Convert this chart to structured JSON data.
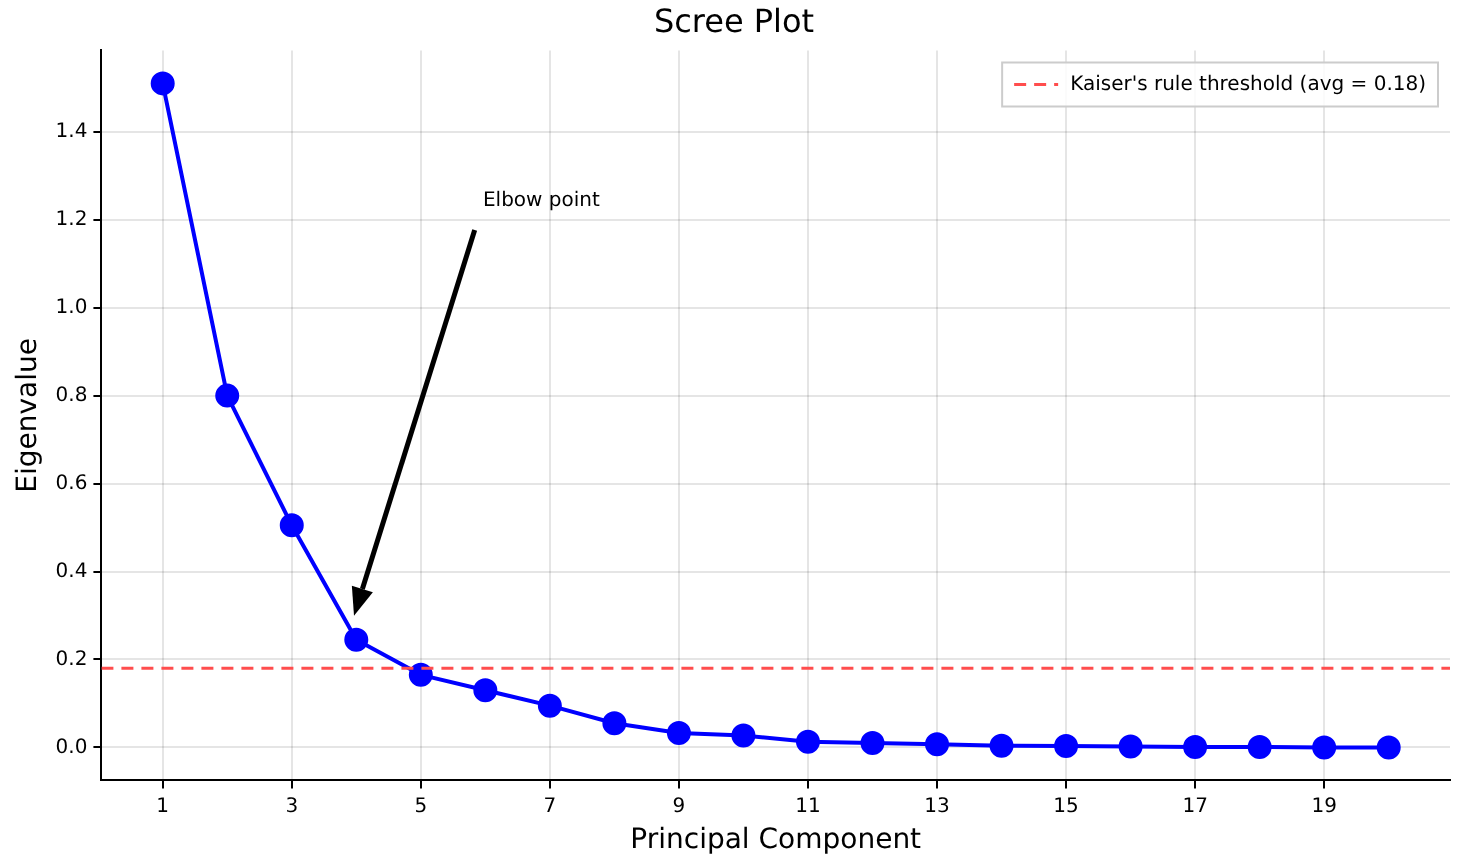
{
  "chart_data": {
    "type": "line",
    "title": "Scree Plot",
    "xlabel": "Principal Component",
    "ylabel": "Eigenvalue",
    "x": [
      1,
      2,
      3,
      4,
      5,
      6,
      7,
      8,
      9,
      10,
      11,
      12,
      13,
      14,
      15,
      16,
      17,
      18,
      19,
      20
    ],
    "series": [
      {
        "color": "#0000ff",
        "values": [
          1.51,
          0.8,
          0.505,
          0.245,
          0.165,
          0.13,
          0.095,
          0.055,
          0.033,
          0.027,
          0.013,
          0.01,
          0.007,
          0.004,
          0.003,
          0.002,
          0.001,
          0.001,
          0.0,
          0.0
        ]
      }
    ],
    "xlim": [
      0.05,
      20.95
    ],
    "xticks": [
      1,
      3,
      5,
      7,
      9,
      11,
      13,
      15,
      17,
      19
    ],
    "ylim": [
      -0.075,
      1.585
    ],
    "yticks": [
      {
        "value": 0,
        "label": "0.0"
      },
      0.2,
      0.4,
      0.6,
      0.8,
      {
        "value": 1,
        "label": "1.0"
      },
      1.2,
      1.4
    ],
    "ref_lines": [
      {
        "axis": "y",
        "value": 0.18,
        "label": "Kaiser's rule threshold (avg = 0.18)",
        "color": "#ff4d4d",
        "line_style": "dashed"
      }
    ],
    "annotations": [
      "Elbow point"
    ],
    "grid": true,
    "legend": "top right",
    "marker": "circle",
    "line_style": "solid"
  }
}
